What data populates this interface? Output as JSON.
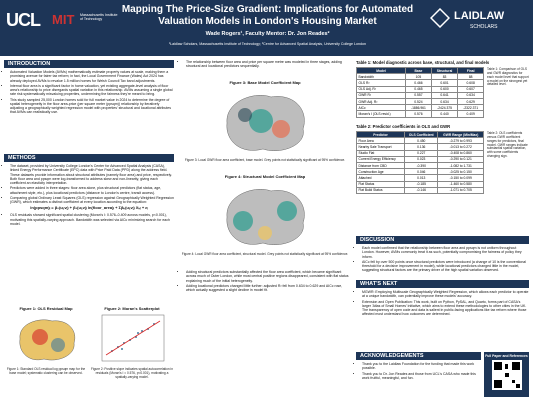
{
  "header": {
    "title": "Mapping The Price-Size Gradient: Implications for Automated Valuation Models in London's Housing Market",
    "authors": "Wade Rogers¹, Faculty Mentor: Dr. Jon Reades²",
    "affiliations": "¹Laidlaw Scholars, Massachusetts Institute of Technology; ²Centre for Advanced Spatial Analysis, University College London",
    "logo_left": "UCL",
    "logo_mit": "MIT",
    "logo_mit_text": "Massachusetts Institute of Technology",
    "logo_right": "LAIDLAW",
    "logo_right_sub": "SCHOLARS"
  },
  "introduction": {
    "heading": "INTRODUCTION",
    "bullets": [
      "Automated Valuation Models (AVMs) mathematically estimate property values at scale, making them a promising avenue for fairer tax reform; in fact, the Local Government Finance (Wales) Act 2024 has already deployed AVMs to revalue 1.5 million homes for Welsh Council Tax band adjustments.",
      "Internal floor area is a significant factor in home valuation, yet existing aggregate-level analysis of floor area's relationship to price disregards spatial variation in this relationship. AVMs assuming a single global rate risk systematically misvaluing properties, undermining the fairness they're meant to bring.",
      "This study sampled 25,000 London homes sold for full market value in 2024 to determine the degree of spatial heterogeneity in the floor area-price (per square meter (ppsqm)) relationship by iteratively adjusting a geographically weighted regression model with properties' structural and locational attributes that AVMs can realistically use."
    ]
  },
  "methods": {
    "heading": "METHODS",
    "bullets": [
      "The dataset, provided by University College London's Center for Advanced Spatial Analysis (CASA), linked Energy Performance Certificate (EPC) data with Price Paid Data (PPD) along the address field. These datasets provide information about structural attributes (namely floor area) and price, respectively. Both floor area and ppsqm were log-transformed to address skew and non-linearity, giving each coefficient an elasticity interpretation.",
      "Predictors were added in three stages: floor area alone, plus structural predictors (flat status, age, attachment style, etc.), plus locational predictors (distance to London's centre, transit access).",
      "Comparing global Ordinary Least Squares (OLS) regression against Geographically Weighted Regression (GWR), which estimates a distinct coefficient at every location according to the equation:"
    ],
    "equation": "ln(ppsqm)ᵢ = β₀(uᵢ,vᵢ) + β₁(uᵢ,vᵢ) ln(floor_area)ᵢ + Σβₖ(uᵢ,vᵢ) Xₖᵢ + εᵢ",
    "bullets_after": [
      "OLS residuals showed significant spatial clustering (Moran's I: 0.576–0.409 across models, p<0.001), motivating this spatially-varying approach. Bandwidth was selected via AICc minimizing search for each model."
    ]
  },
  "figures": [
    {
      "title": "Figure 1: OLS Residual Map",
      "caption": "Figure 1: Standard OLS residual log ppsqm map for the base model; systematic clustering can be observed."
    },
    {
      "title": "Figure 2: Moran's Scatterplot",
      "caption": "Figure 2: Positive slope indicates spatial autocorrelation in residuals (Moran's I = 0.576, p<0.001), motivating a spatially-varying model."
    },
    {
      "title": "Figure 3: Base Model Coefficient Map",
      "caption": "Figure 3: Local GWR floor area coefficient, base model. Grey points not statistically significant at 95% confidence."
    },
    {
      "title": "Figure 4: Structural Model Coefficient Map",
      "caption": "Figure 4: Local GWR floor area coefficient, structural model. Grey points not statistically significant at 95% confidence."
    }
  ],
  "results": {
    "intro": [
      "The relationship between floor area and price per square metre was modeled in three stages, adding structural and locational predictors sequentially."
    ],
    "bullets": [
      "Adding structural predictors substantially affected the floor area coefficient, which became significant across much of Outer London, while most central positive regions disappeared, consistent with flat status explaining much of the initial heterogeneity.",
      "Adding locational predictors changed little further: adjusted R² fell from 0.634 to 0.629 and AICc rose, which actually suggested a slight decline in model fit."
    ]
  },
  "table1": {
    "title": "Table 1: Model diagnostic across base, structural, and final models",
    "note": "Table 1: Comparison of OLS and GWR diagnostics for each model level that support a model on the strongest yet detailed level.",
    "columns": [
      "Model",
      "Base",
      "Structural",
      "Final"
    ],
    "rows": [
      [
        "Bandwidth",
        "105",
        "83",
        "88"
      ],
      [
        "OLS R²",
        "0.466",
        "0.601",
        "0.608"
      ],
      [
        "OLS Adj. R²",
        "0.465",
        "0.600",
        "0.607"
      ],
      [
        "GWR R²",
        "0.557",
        "0.641",
        "0.634"
      ],
      [
        "GWR Adj. R²",
        "0.524",
        "0.634",
        "0.629"
      ],
      [
        "AICc",
        "-1886.961",
        "-2424.375",
        "-2322.371"
      ],
      [
        "Moran's I (OLS resid.)",
        "0.576",
        "0.440",
        "0.409"
      ]
    ]
  },
  "table2": {
    "title": "Table 2: Predictor coefficients in OLS and GWR",
    "note": "Table 2: OLS coefficients versus GWR coefficient ranges for predictors, final model. GWR ranges indicate substantial spatial variation, with some coefficients changing sign.",
    "columns": [
      "Predictor",
      "OLS Coefficient",
      "GWR Range (Min/Max)"
    ],
    "rows": [
      [
        "Floor Area",
        "0.450",
        "-0.279 to 0.993"
      ],
      [
        "Nearby Sale Transport",
        "0.136",
        "-0.013 to 0.272"
      ],
      [
        "Studio Flat",
        "0.227",
        "-0.408 to 0.860"
      ],
      [
        "Current Energy Efficiency",
        "0.023",
        "-0.290 to 0.121"
      ],
      [
        "Distance from CBD",
        "-0.390",
        "-1.082 to 1.731"
      ],
      [
        "Construction Age",
        "0.046",
        "-0.025 to 0.150"
      ],
      [
        "Attached",
        "0.013",
        "-0.150 to 0.099"
      ],
      [
        "Flat Status",
        "-0.185",
        "-1.460 to 0.580"
      ],
      [
        "Flat Build Status",
        "-0.146",
        "-1.071 to 0.705"
      ]
    ]
  },
  "discussion": {
    "heading": "DISCUSSION",
    "bullets": [
      "Each model confirmed that the relationship between floor area and ppsqm is not uniform throughout London. However, AVMs commonly treat it as such, potentially compromising the fairness of policy they inform.",
      "AICc fell by over 500 points once structural predictors were introduced (a change of 10 is the conventional threshold for a decisive improvement in model), while locational predictors changed little in the model, suggesting structural factors are the primary driver of the high spatial variation observed."
    ]
  },
  "whats_next": {
    "heading": "WHAT'S NEXT",
    "bullets": [
      "MGWR: Employing Multiscale Geographically Weighted Regression, which allows each predictor to operate at a unique bandwidth, can potentially improve these models' accuracy.",
      "Extension and Open Publication: This work, built on Python, PySAL, and Quarto, forms part of CASA's larger 'Atlas of Small Homes' initiative, which aims to extend these methodologies to other cities in the UK. The transparency of open code and data is salient in public-facing applications like tax reform where those affected most understand how outcomes are determined."
    ]
  },
  "acknowledgements": {
    "heading": "ACKNOWLEDGEMENTS",
    "qr_label": "Full Paper and References",
    "bullets": [
      "Thank you to the Laidlaw Foundation for the funding that made this work possible.",
      "Thank you to Dr. Jon Reades and those from UCL's CASA who made this work fruitful, meaningful, and fun."
    ]
  }
}
